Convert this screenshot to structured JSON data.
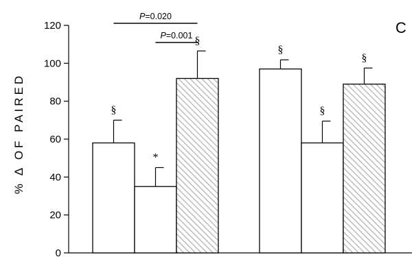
{
  "chart_data": {
    "type": "bar",
    "panel_label": "C",
    "ylabel": "% Δ OF PAIRED",
    "xlabel": "",
    "ylim": [
      0,
      120
    ],
    "yticks": [
      0,
      20,
      40,
      60,
      80,
      100,
      120
    ],
    "grid": false,
    "legend": "none",
    "groups": [
      {
        "bars": [
          {
            "value": 58.0,
            "error": 12.0,
            "fill": "white",
            "annotation": "§"
          },
          {
            "value": 35.0,
            "error": 10.0,
            "fill": "white",
            "annotation": "*"
          },
          {
            "value": 92.0,
            "error": 14.5,
            "fill": "hatched",
            "annotation": "§"
          }
        ]
      },
      {
        "bars": [
          {
            "value": 97.0,
            "error": 4.8,
            "fill": "white",
            "annotation": "§"
          },
          {
            "value": 58.0,
            "error": 11.5,
            "fill": "white",
            "annotation": "§"
          },
          {
            "value": 89.0,
            "error": 8.5,
            "fill": "hatched",
            "annotation": "§"
          }
        ]
      }
    ],
    "significance": [
      {
        "group": 0,
        "from": 0,
        "to": 2,
        "label": "P=0.020"
      },
      {
        "group": 0,
        "from": 1,
        "to": 2,
        "label": "P=0.001"
      }
    ],
    "colors": {
      "bar_stroke": "#000000",
      "hatch": "#a8a8a8",
      "bar_fill": "#ffffff"
    }
  }
}
